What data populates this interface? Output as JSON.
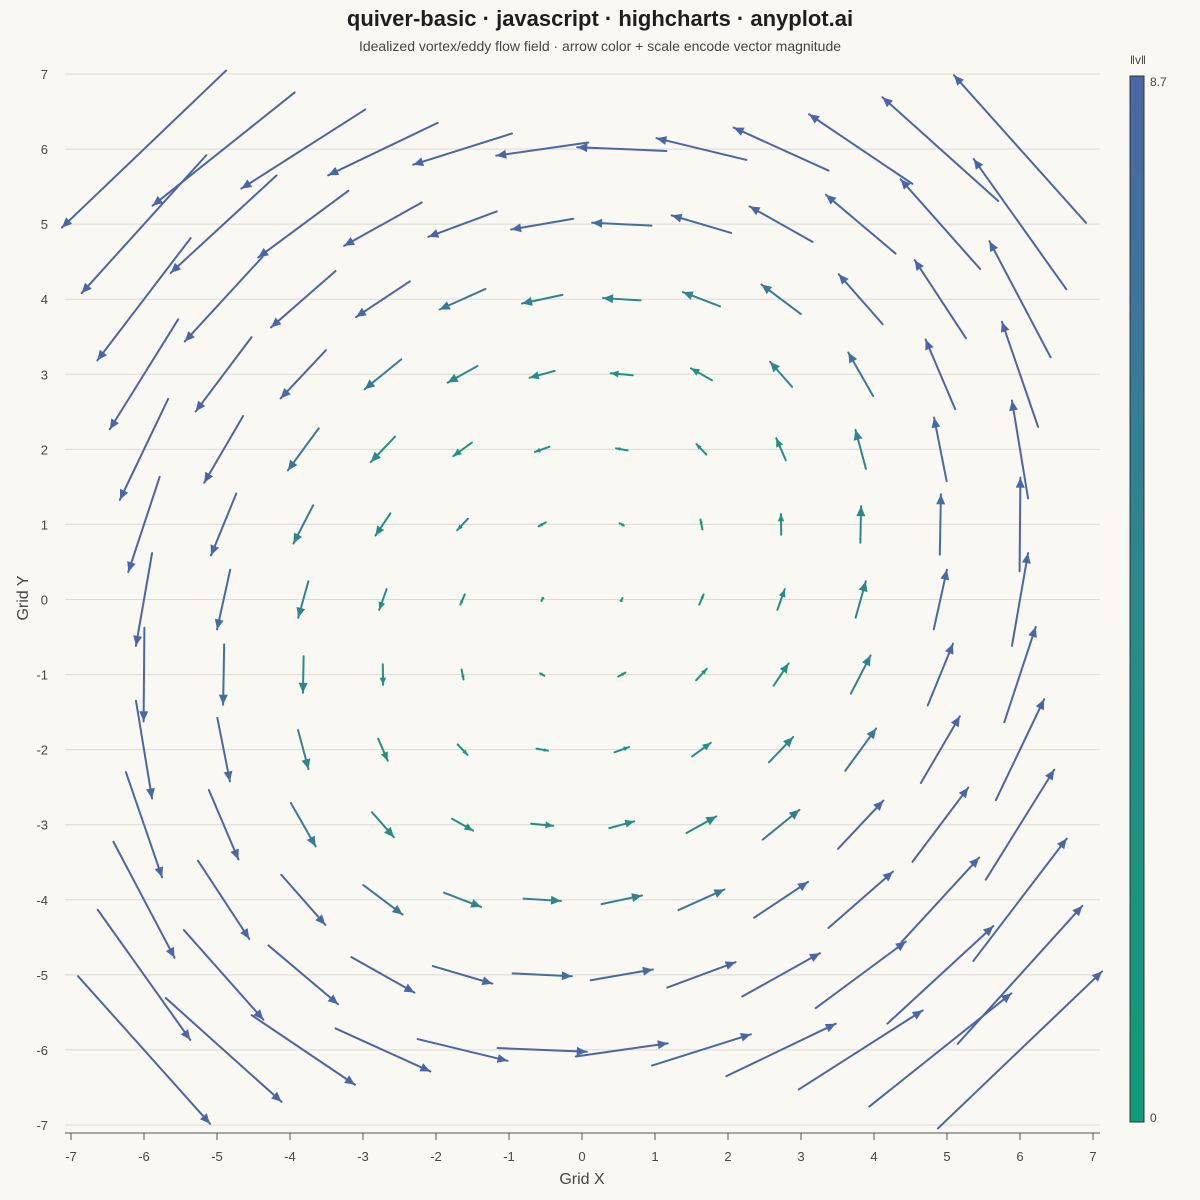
{
  "title": "quiver-basic · javascript · highcharts · anyplot.ai",
  "subtitle": "Idealized vortex/eddy flow field · arrow color + scale encode vector magnitude",
  "chart_data": {
    "type": "quiver",
    "xlabel": "Grid X",
    "ylabel": "Grid Y",
    "xlim": [
      -7,
      7
    ],
    "ylim": [
      -7,
      7
    ],
    "xticks": [
      "-7",
      "-6",
      "-5",
      "-4",
      "-3",
      "-2",
      "-1",
      "0",
      "1",
      "2",
      "3",
      "4",
      "5",
      "6",
      "7"
    ],
    "yticks": [
      "7",
      "6",
      "5",
      "4",
      "3",
      "2",
      "1",
      "0",
      "-1",
      "-2",
      "-3",
      "-4",
      "-5",
      "-6",
      "-7"
    ],
    "grid": true,
    "grid_x": [
      -6,
      -4.909,
      -3.818,
      -2.727,
      -1.636,
      -0.545,
      0.545,
      1.636,
      2.727,
      3.818,
      4.909,
      6
    ],
    "grid_y": [
      6,
      5,
      4,
      3,
      2,
      1,
      0,
      -1,
      -2,
      -3,
      -4,
      -5,
      -6
    ],
    "field": "u = -y·(1 + 0.05·(x² + y²)) · 0.7 + 0.35·x, v = x·(1 + 0.05·(x² + y²)) · 0.7 - 0.1·y (idealized vortex/eddy)",
    "arrow_scale": 0.105,
    "colorbar": {
      "label": "‖v‖",
      "min": 0,
      "max": 8.7,
      "min_label": "0",
      "max_label": "8.7",
      "color_low": "#0f9b77",
      "color_mid": "#2a8a8a",
      "color_high": "#4a66a6"
    }
  }
}
